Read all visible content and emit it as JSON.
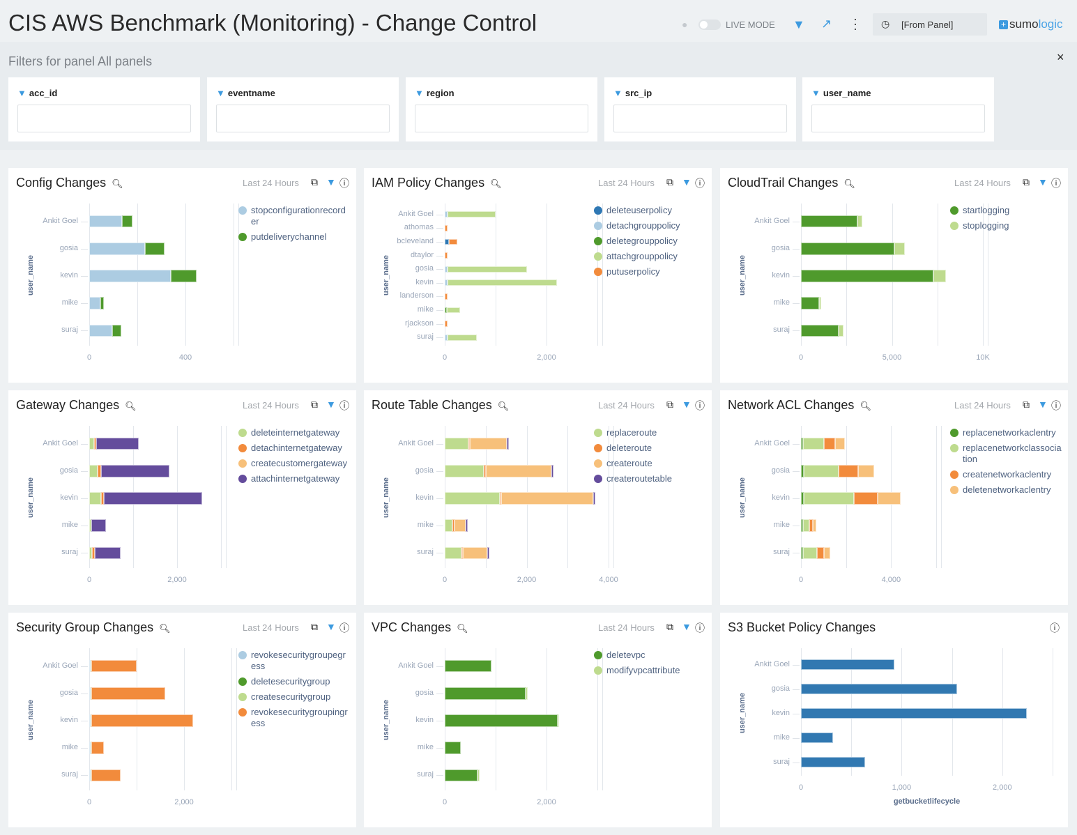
{
  "header": {
    "title": "CIS AWS Benchmark (Monitoring) - Change Control",
    "live_mode_label": "LIVE MODE",
    "time_range": "[From Panel]",
    "logo_text_a": "sumo",
    "logo_text_b": "logic",
    "icons": [
      "user-icon",
      "toggle",
      "filter-icon",
      "share-icon",
      "more-vert-icon",
      "clock-icon"
    ]
  },
  "filters": {
    "title": "Filters for panel All panels",
    "close_icon": "×",
    "fields": [
      {
        "label": "acc_id",
        "value": ""
      },
      {
        "label": "eventname",
        "value": ""
      },
      {
        "label": "region",
        "value": ""
      },
      {
        "label": "src_ip",
        "value": ""
      },
      {
        "label": "user_name",
        "value": ""
      }
    ]
  },
  "panel_time_label": "Last 24 Hours",
  "colors": {
    "accent": "#3c9adf"
  },
  "chart_data": [
    {
      "type": "bar",
      "orientation": "horizontal",
      "stacked": true,
      "title": "Config Changes",
      "toolbar": true,
      "categories": [
        "Ankit Goel",
        "gosia",
        "kevin",
        "mike",
        "suraj"
      ],
      "ylabel": "user_name",
      "xlabel": "",
      "xlim": [
        0,
        600
      ],
      "grid": [
        0,
        200,
        400,
        600
      ],
      "xtick_labels": [
        {
          "v": 0,
          "t": "0"
        },
        {
          "v": 400,
          "t": "400"
        }
      ],
      "series": [
        {
          "name": "stopconfigurationrecorder",
          "color": "#acccE2",
          "values": [
            136,
            232,
            339,
            46,
            96
          ]
        },
        {
          "name": "putdeliverychannel",
          "color": "#4f9a2c",
          "values": [
            44,
            81,
            107,
            15,
            37
          ]
        }
      ]
    },
    {
      "type": "bar",
      "orientation": "horizontal",
      "stacked": true,
      "title": "IAM Policy Changes",
      "toolbar": true,
      "categories": [
        "Ankit Goel",
        "athomas",
        "bcleveland",
        "dtaylor",
        "gosia",
        "kevin",
        "landerson",
        "mike",
        "rjackson",
        "suraj"
      ],
      "ylabel": "user_name",
      "xlabel": "",
      "xlim": [
        0,
        3000
      ],
      "grid": [
        0,
        1000,
        2000,
        3000
      ],
      "xtick_labels": [
        {
          "v": 0,
          "t": "0"
        },
        {
          "v": 2000,
          "t": "2,000"
        }
      ],
      "series": [
        {
          "name": "deleteuserpolicy",
          "color": "#2f78b4",
          "values": [
            0,
            0,
            80,
            0,
            0,
            0,
            0,
            0,
            0,
            0
          ]
        },
        {
          "name": "detachgrouppolicy",
          "color": "#acccE2",
          "values": [
            50,
            0,
            0,
            0,
            50,
            50,
            0,
            0,
            0,
            50
          ]
        },
        {
          "name": "deletegrouppolicy",
          "color": "#4f9a2c",
          "values": [
            0,
            0,
            0,
            0,
            0,
            0,
            0,
            40,
            0,
            0
          ]
        },
        {
          "name": "attachgrouppolicy",
          "color": "#bedb8e",
          "values": [
            950,
            0,
            0,
            0,
            1570,
            2150,
            0,
            260,
            0,
            580
          ]
        },
        {
          "name": "putuserpolicy",
          "color": "#f28b3c",
          "values": [
            0,
            50,
            170,
            50,
            0,
            0,
            50,
            0,
            50,
            0
          ]
        }
      ]
    },
    {
      "type": "bar",
      "orientation": "horizontal",
      "stacked": true,
      "title": "CloudTrail Changes",
      "toolbar": true,
      "categories": [
        "Ankit Goel",
        "gosia",
        "kevin",
        "mike",
        "suraj"
      ],
      "ylabel": "user_name",
      "xlabel": "",
      "xlim": [
        0,
        10000
      ],
      "grid": [
        0,
        2500,
        5000,
        7500,
        10000
      ],
      "xtick_labels": [
        {
          "v": 0,
          "t": "0"
        },
        {
          "v": 5000,
          "t": "5,000"
        },
        {
          "v": 10000,
          "t": "10K"
        }
      ],
      "series": [
        {
          "name": "startlogging",
          "color": "#4f9a2c",
          "values": [
            3090,
            5150,
            7290,
            990,
            2060
          ]
        },
        {
          "name": "stoplogging",
          "color": "#bedb8e",
          "values": [
            300,
            540,
            690,
            110,
            270
          ]
        }
      ]
    },
    {
      "type": "bar",
      "orientation": "horizontal",
      "stacked": true,
      "title": "Gateway Changes",
      "toolbar": true,
      "categories": [
        "Ankit Goel",
        "gosia",
        "kevin",
        "mike",
        "suraj"
      ],
      "ylabel": "user_name",
      "xlabel": "",
      "xlim": [
        0,
        3000
      ],
      "grid": [
        0,
        1000,
        2000,
        3000
      ],
      "xtick_labels": [
        {
          "v": 0,
          "t": "0"
        },
        {
          "v": 2000,
          "t": "2,000"
        }
      ],
      "series": [
        {
          "name": "deleteinternetgateway",
          "color": "#bedb8e",
          "values": [
            107,
            194,
            270,
            54,
            70
          ]
        },
        {
          "name": "detachinternetgateway",
          "color": "#f28b3c",
          "values": [
            54,
            70,
            70,
            0,
            54
          ]
        },
        {
          "name": "createcustomergateway",
          "color": "#f7c07a",
          "values": [
            0,
            0,
            0,
            0,
            0
          ]
        },
        {
          "name": "attachinternetgateway",
          "color": "#644c9c",
          "values": [
            968,
            1560,
            2225,
            333,
            597
          ]
        }
      ]
    },
    {
      "type": "bar",
      "orientation": "horizontal",
      "stacked": true,
      "title": "Route Table Changes",
      "toolbar": true,
      "categories": [
        "Ankit Goel",
        "gosia",
        "kevin",
        "mike",
        "suraj"
      ],
      "ylabel": "user_name",
      "xlabel": "",
      "xlim": [
        0,
        4000
      ],
      "grid": [
        0,
        1000,
        2000,
        3000,
        4000
      ],
      "xtick_labels": [
        {
          "v": 0,
          "t": "0"
        },
        {
          "v": 2000,
          "t": "2,000"
        },
        {
          "v": 4000,
          "t": "4,000"
        }
      ],
      "series": [
        {
          "name": "replaceroute",
          "color": "#bedb8e",
          "values": [
            571,
            960,
            1337,
            194,
            400
          ]
        },
        {
          "name": "deleteroute",
          "color": "#f28b3c",
          "values": [
            40,
            46,
            46,
            40,
            40
          ]
        },
        {
          "name": "createroute",
          "color": "#f7c07a",
          "values": [
            903,
            1606,
            2240,
            274,
            594
          ]
        },
        {
          "name": "createroutetable",
          "color": "#644c9c",
          "values": [
            46,
            46,
            50,
            57,
            51
          ]
        }
      ]
    },
    {
      "type": "bar",
      "orientation": "horizontal",
      "stacked": true,
      "title": "Network ACL Changes",
      "toolbar": true,
      "categories": [
        "Ankit Goel",
        "gosia",
        "kevin",
        "mike",
        "suraj"
      ],
      "ylabel": "user_name",
      "xlabel": "",
      "xlim": [
        0,
        6000
      ],
      "grid": [
        0,
        2000,
        4000,
        6000
      ],
      "xtick_labels": [
        {
          "v": 0,
          "t": "0"
        },
        {
          "v": 4000,
          "t": "4,000"
        }
      ],
      "series": [
        {
          "name": "replacenetworkaclentry",
          "color": "#4f9a2c",
          "values": [
            93,
            114,
            135,
            93,
            93
          ]
        },
        {
          "name": "replacenetworkclassociation",
          "color": "#bedb8e",
          "values": [
            922,
            1554,
            2228,
            280,
            622
          ]
        },
        {
          "name": "createnetworkaclentry",
          "color": "#f28b3c",
          "values": [
            487,
            860,
            1047,
            166,
            311
          ]
        },
        {
          "name": "deletenetworkaclentry",
          "color": "#f7c07a",
          "values": [
            435,
            715,
            1026,
            135,
            259
          ]
        }
      ]
    },
    {
      "type": "bar",
      "orientation": "horizontal",
      "stacked": true,
      "title": "Security Group Changes",
      "toolbar": true,
      "categories": [
        "Ankit Goel",
        "gosia",
        "kevin",
        "mike",
        "suraj"
      ],
      "ylabel": "user_name",
      "xlabel": "",
      "xlim": [
        0,
        3000
      ],
      "grid": [
        0,
        1000,
        2000,
        3000
      ],
      "xtick_labels": [
        {
          "v": 0,
          "t": "0"
        },
        {
          "v": 2000,
          "t": "2,000"
        }
      ],
      "series": [
        {
          "name": "revokesecuritygroupegress",
          "color": "#acccE2",
          "values": [
            25,
            25,
            25,
            25,
            25
          ]
        },
        {
          "name": "deletesecuritygroup",
          "color": "#4f9a2c",
          "values": [
            0,
            0,
            0,
            0,
            0
          ]
        },
        {
          "name": "createsecuritygroup",
          "color": "#bedb8e",
          "values": [
            25,
            25,
            25,
            25,
            25
          ]
        },
        {
          "name": "revokesecuritygroupingress",
          "color": "#f28b3c",
          "values": [
            956,
            1554,
            2137,
            265,
            618
          ]
        }
      ]
    },
    {
      "type": "bar",
      "orientation": "horizontal",
      "stacked": true,
      "title": "VPC Changes",
      "toolbar": true,
      "categories": [
        "Ankit Goel",
        "gosia",
        "kevin",
        "mike",
        "suraj"
      ],
      "ylabel": "user_name",
      "xlabel": "",
      "xlim": [
        0,
        3000
      ],
      "grid": [
        0,
        1000,
        2000,
        3000
      ],
      "xtick_labels": [
        {
          "v": 0,
          "t": "0"
        },
        {
          "v": 2000,
          "t": "2,000"
        }
      ],
      "series": [
        {
          "name": "deletevpc",
          "color": "#4f9a2c",
          "values": [
            922,
            1594,
            2215,
            320,
            639
          ]
        },
        {
          "name": "modifyvpcattribute",
          "color": "#bedb8e",
          "values": [
            0,
            41,
            37,
            0,
            46
          ]
        }
      ]
    },
    {
      "type": "bar",
      "orientation": "horizontal",
      "stacked": false,
      "title": "S3 Bucket Policy Changes",
      "toolbar": false,
      "categories": [
        "Ankit Goel",
        "gosia",
        "kevin",
        "mike",
        "suraj"
      ],
      "ylabel": "user_name",
      "xlabel": "getbucketlifecycle",
      "xlim": [
        0,
        2500
      ],
      "grid": [
        0,
        500,
        1000,
        1500,
        2000,
        2500
      ],
      "xtick_labels": [
        {
          "v": 0,
          "t": "0"
        },
        {
          "v": 1000,
          "t": "1,000"
        },
        {
          "v": 2000,
          "t": "2,000"
        }
      ],
      "legend": false,
      "series": [
        {
          "name": "getbucketlifecycle",
          "color": "#3178b1",
          "values": [
            927,
            1550,
            2242,
            318,
            637
          ]
        }
      ]
    }
  ]
}
